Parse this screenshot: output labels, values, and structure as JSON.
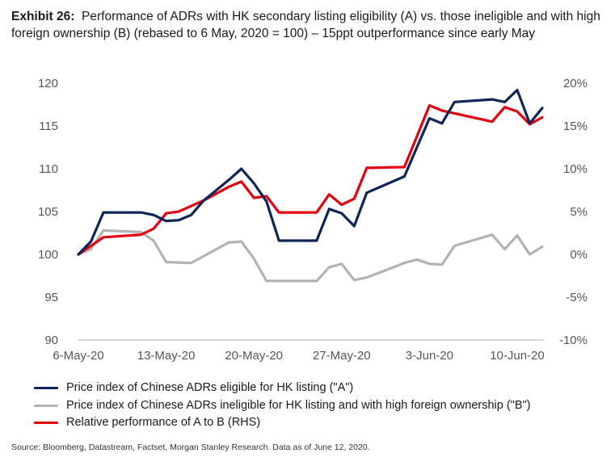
{
  "title": {
    "label": "Exhibit 26:",
    "text": "Performance of ADRs with HK secondary listing eligibility (A) vs. those ineligible and with high foreign ownership (B) (rebased to 6 May, 2020 = 100) – 15ppt outperformance since early May"
  },
  "source": "Source: Bloomberg, Datastream, Factset, Morgan Stanley Research. Data as of June 12, 2020.",
  "chart_data": {
    "type": "line",
    "x_ticks": [
      "6-May-20",
      "13-May-20",
      "20-May-20",
      "27-May-20",
      "3-Jun-20",
      "10-Jun-20"
    ],
    "x_tick_days": [
      0,
      7,
      14,
      21,
      28,
      35
    ],
    "x_range": [
      0,
      37
    ],
    "y_left": {
      "range": [
        90,
        120
      ],
      "ticks": [
        "90",
        "95",
        "100",
        "105",
        "110",
        "115",
        "120"
      ]
    },
    "y_right": {
      "range": [
        -10,
        20
      ],
      "ticks": [
        "-10%",
        "-5%",
        "0%",
        "5%",
        "10%",
        "15%",
        "20%"
      ]
    },
    "grid": false,
    "legend_position": "bottom",
    "series": [
      {
        "name": "Price index of Chinese ADRs eligible for HK listing (\"A\")",
        "axis": "left",
        "color": "#0f2557",
        "points": [
          [
            0,
            100
          ],
          [
            1,
            101.5
          ],
          [
            2,
            104.9
          ],
          [
            5,
            104.9
          ],
          [
            6,
            104.6
          ],
          [
            7,
            103.9
          ],
          [
            8,
            104.0
          ],
          [
            9,
            104.6
          ],
          [
            10,
            106.3
          ],
          [
            12,
            108.7
          ],
          [
            13,
            110.0
          ],
          [
            14,
            108.3
          ],
          [
            15,
            106.2
          ],
          [
            16,
            101.6
          ],
          [
            19,
            101.6
          ],
          [
            20,
            105.3
          ],
          [
            21,
            104.8
          ],
          [
            22,
            103.3
          ],
          [
            23,
            107.2
          ],
          [
            26,
            109.1
          ],
          [
            28,
            115.9
          ],
          [
            29,
            115.3
          ],
          [
            30,
            117.8
          ],
          [
            33,
            118.1
          ],
          [
            34,
            117.8
          ],
          [
            35,
            119.2
          ],
          [
            36,
            115.3
          ],
          [
            37,
            117.1
          ]
        ]
      },
      {
        "name": "Price index of Chinese ADRs ineligible for HK listing and with high foreign ownership (\"B\")",
        "axis": "left",
        "color": "#b3b3b3",
        "points": [
          [
            0,
            100
          ],
          [
            1,
            100.6
          ],
          [
            2,
            102.8
          ],
          [
            5,
            102.6
          ],
          [
            6,
            101.6
          ],
          [
            7,
            99.1
          ],
          [
            9,
            99.0
          ],
          [
            12,
            101.4
          ],
          [
            13,
            101.5
          ],
          [
            14,
            99.5
          ],
          [
            15,
            96.9
          ],
          [
            19,
            96.9
          ],
          [
            20,
            98.5
          ],
          [
            21,
            98.9
          ],
          [
            22,
            97.0
          ],
          [
            23,
            97.3
          ],
          [
            26,
            99.0
          ],
          [
            27,
            99.4
          ],
          [
            28,
            98.9
          ],
          [
            29,
            98.8
          ],
          [
            30,
            101.0
          ],
          [
            33,
            102.3
          ],
          [
            34,
            100.6
          ],
          [
            35,
            102.2
          ],
          [
            36,
            100.0
          ],
          [
            37,
            100.9
          ]
        ]
      },
      {
        "name": "Relative performance of A to B (RHS)",
        "axis": "right",
        "color": "#e3000f",
        "points": [
          [
            0,
            0
          ],
          [
            2,
            2.0
          ],
          [
            5,
            2.3
          ],
          [
            6,
            3.0
          ],
          [
            7,
            4.8
          ],
          [
            8,
            5.0
          ],
          [
            10,
            6.3
          ],
          [
            12,
            7.9
          ],
          [
            13,
            8.5
          ],
          [
            14,
            6.6
          ],
          [
            15,
            6.8
          ],
          [
            16,
            4.9
          ],
          [
            19,
            4.9
          ],
          [
            20,
            7.0
          ],
          [
            21,
            5.8
          ],
          [
            22,
            6.5
          ],
          [
            23,
            10.1
          ],
          [
            26,
            10.2
          ],
          [
            28,
            17.4
          ],
          [
            29,
            16.8
          ],
          [
            33,
            15.5
          ],
          [
            34,
            17.2
          ],
          [
            35,
            16.7
          ],
          [
            36,
            15.2
          ],
          [
            37,
            16.0
          ]
        ]
      }
    ]
  }
}
